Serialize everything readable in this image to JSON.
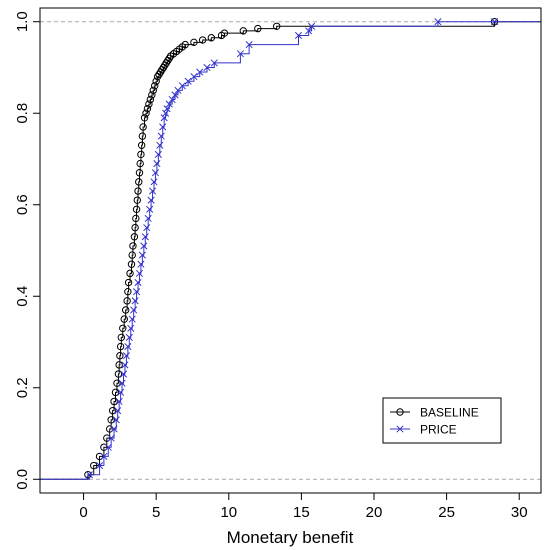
{
  "chart_data": {
    "type": "step",
    "title": "",
    "xlabel": "Monetary benefit",
    "ylabel": "",
    "xlim": [
      -3,
      31.5
    ],
    "ylim": [
      -0.03,
      1.03
    ],
    "xticks": [
      0,
      5,
      10,
      15,
      20,
      25,
      30
    ],
    "yticks": [
      0.0,
      0.2,
      0.4,
      0.6,
      0.8,
      1.0
    ],
    "ytick_labels": [
      "0.0",
      "0.2",
      "0.4",
      "0.6",
      "0.8",
      "1.0"
    ],
    "reference_lines": [
      0,
      1
    ],
    "legend": {
      "position": "bottom-right"
    },
    "series": [
      {
        "name": "BASELINE",
        "color": "#000000",
        "marker": "circle",
        "x": [
          0.3,
          0.7,
          1.1,
          1.4,
          1.6,
          1.8,
          1.9,
          2.0,
          2.1,
          2.2,
          2.3,
          2.4,
          2.45,
          2.5,
          2.55,
          2.6,
          2.7,
          2.8,
          2.9,
          3.0,
          3.05,
          3.1,
          3.2,
          3.3,
          3.35,
          3.4,
          3.5,
          3.55,
          3.6,
          3.65,
          3.7,
          3.75,
          3.8,
          3.85,
          3.9,
          3.95,
          4.0,
          4.05,
          4.1,
          4.2,
          4.3,
          4.4,
          4.5,
          4.6,
          4.7,
          4.8,
          4.9,
          5.0,
          5.1,
          5.2,
          5.3,
          5.4,
          5.5,
          5.6,
          5.7,
          5.8,
          5.9,
          6.0,
          6.2,
          6.4,
          6.6,
          6.8,
          7.0,
          7.6,
          8.2,
          8.8,
          9.5,
          9.7,
          11.0,
          12.0,
          13.3,
          28.3
        ],
        "y": [
          0.01,
          0.03,
          0.05,
          0.07,
          0.09,
          0.11,
          0.13,
          0.15,
          0.17,
          0.19,
          0.21,
          0.23,
          0.25,
          0.27,
          0.29,
          0.31,
          0.33,
          0.35,
          0.37,
          0.39,
          0.41,
          0.43,
          0.45,
          0.47,
          0.49,
          0.51,
          0.53,
          0.55,
          0.57,
          0.59,
          0.61,
          0.63,
          0.65,
          0.67,
          0.69,
          0.71,
          0.73,
          0.75,
          0.77,
          0.79,
          0.8,
          0.81,
          0.82,
          0.83,
          0.84,
          0.85,
          0.86,
          0.87,
          0.88,
          0.885,
          0.89,
          0.895,
          0.9,
          0.905,
          0.91,
          0.915,
          0.92,
          0.925,
          0.93,
          0.935,
          0.94,
          0.945,
          0.95,
          0.955,
          0.96,
          0.965,
          0.97,
          0.975,
          0.98,
          0.985,
          0.99,
          1.0
        ]
      },
      {
        "name": "PRICE",
        "color": "#3333cc",
        "marker": "cross",
        "x": [
          0.4,
          1.1,
          1.4,
          1.7,
          1.9,
          2.1,
          2.25,
          2.35,
          2.45,
          2.55,
          2.65,
          2.75,
          2.85,
          2.95,
          3.05,
          3.15,
          3.25,
          3.35,
          3.45,
          3.55,
          3.65,
          3.75,
          3.85,
          3.95,
          4.05,
          4.15,
          4.25,
          4.35,
          4.45,
          4.55,
          4.65,
          4.75,
          4.85,
          4.95,
          5.05,
          5.15,
          5.25,
          5.35,
          5.45,
          5.55,
          5.65,
          5.75,
          5.9,
          6.1,
          6.3,
          6.5,
          6.8,
          7.2,
          7.6,
          8.0,
          8.5,
          9.0,
          10.8,
          11.4,
          14.8,
          15.5,
          15.7,
          24.4,
          28.3
        ],
        "y": [
          0.01,
          0.03,
          0.05,
          0.07,
          0.09,
          0.11,
          0.13,
          0.15,
          0.17,
          0.19,
          0.21,
          0.23,
          0.25,
          0.27,
          0.29,
          0.31,
          0.33,
          0.35,
          0.37,
          0.39,
          0.41,
          0.43,
          0.45,
          0.47,
          0.49,
          0.51,
          0.53,
          0.55,
          0.57,
          0.59,
          0.61,
          0.63,
          0.65,
          0.67,
          0.69,
          0.71,
          0.73,
          0.75,
          0.77,
          0.79,
          0.8,
          0.81,
          0.82,
          0.83,
          0.84,
          0.85,
          0.86,
          0.87,
          0.88,
          0.89,
          0.9,
          0.91,
          0.93,
          0.95,
          0.97,
          0.98,
          0.99,
          1.0,
          1.0
        ]
      }
    ]
  }
}
